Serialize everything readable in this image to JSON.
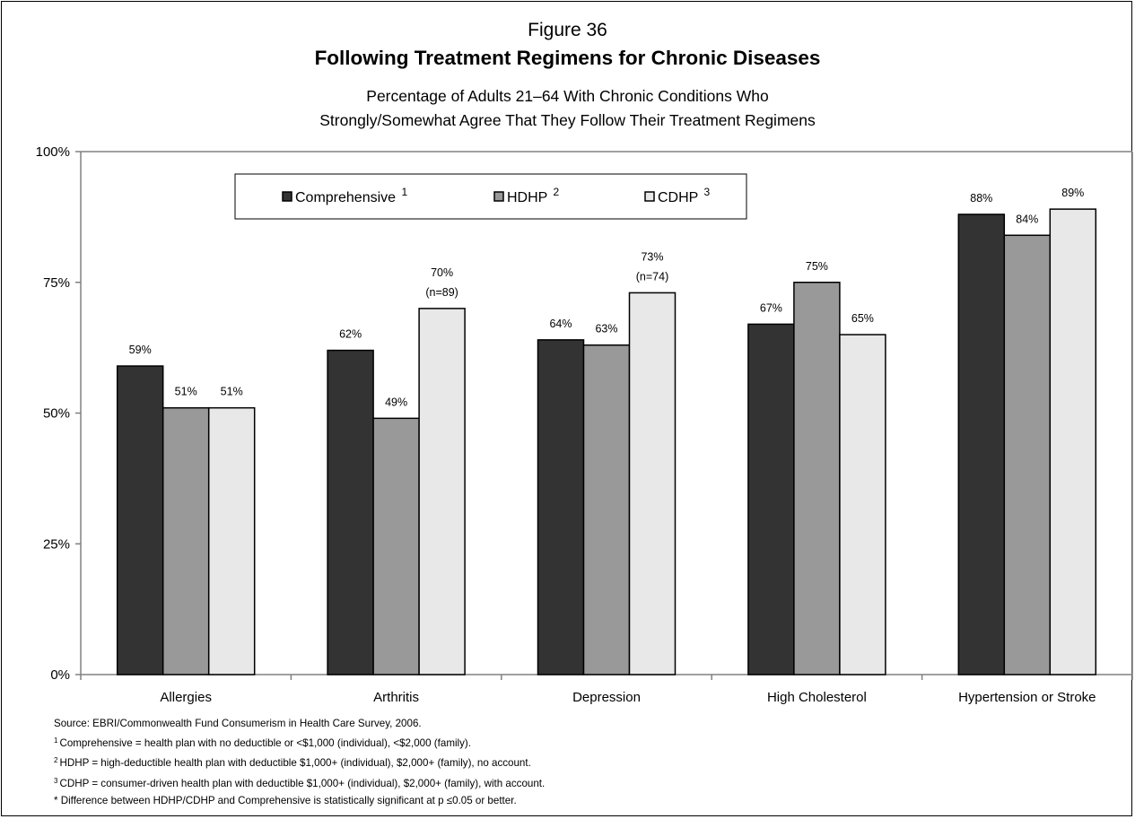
{
  "figure_label": "Figure 36",
  "title": "Following Treatment Regimens for Chronic Diseases",
  "subtitle_line1": "Percentage of Adults 21–64 With Chronic Conditions Who",
  "subtitle_line2": "Strongly/Somewhat Agree That They Follow Their Treatment Regimens",
  "colors": {
    "comprehensive": "#333333",
    "hdhp": "#999999",
    "cdhp": "#e8e8e8",
    "frame": "#000000",
    "axis": "#808080"
  },
  "chart_data": {
    "type": "bar",
    "categories": [
      "Allergies",
      "Arthritis",
      "Depression",
      "High Cholesterol",
      "Hypertension or Stroke"
    ],
    "series": [
      {
        "name": "Comprehensive",
        "superscript": "1",
        "values": [
          59,
          62,
          64,
          67,
          88
        ],
        "labels": [
          "59%",
          "62%",
          "64%",
          "67%",
          "88%"
        ]
      },
      {
        "name": "HDHP",
        "superscript": "2",
        "values": [
          51,
          49,
          63,
          75,
          84
        ],
        "labels": [
          "51%",
          "49%",
          "63%",
          "75%",
          "84%"
        ]
      },
      {
        "name": "CDHP",
        "superscript": "3",
        "values": [
          51,
          70,
          73,
          65,
          89
        ],
        "labels": [
          "51%",
          "70%",
          "73%",
          "65%",
          "89%"
        ]
      }
    ],
    "annotations": [
      {
        "category": "Arthritis",
        "series": "CDHP",
        "text": "(n=89)"
      },
      {
        "category": "Depression",
        "series": "CDHP",
        "text": "(n=74)"
      }
    ],
    "y_ticks": [
      0,
      25,
      50,
      75,
      100
    ],
    "y_tick_labels": [
      "0%",
      "25%",
      "50%",
      "75%",
      "100%"
    ],
    "ylim": [
      0,
      100
    ],
    "grid": false,
    "legend_position": "top"
  },
  "footnotes": {
    "source": "Source: EBRI/Commonwealth Fund Consumerism in Health Care Survey, 2006.",
    "note1_mark": "1",
    "note1": "Comprehensive =  health plan with no deductible or <$1,000 (individual), <$2,000 (family).",
    "note2_mark": "2",
    "note2": "HDHP =  high-deductible health plan with deductible $1,000+ (individual), $2,000+ (family), no account.",
    "note3_mark": "3",
    "note3": "CDHP =  consumer-driven health plan with deductible $1,000+ (individual), $2,000+ (family), with account.",
    "note4": "* Difference between HDHP/CDHP and Comprehensive is statistically significant at p ≤0.05 or better."
  }
}
